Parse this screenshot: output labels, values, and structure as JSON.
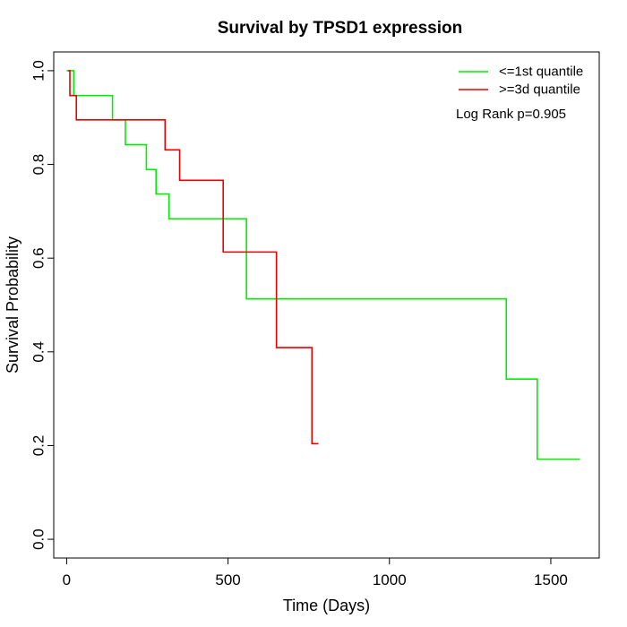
{
  "chart_data": {
    "type": "line",
    "title": "Survival by TPSD1 expression",
    "xlabel": "Time (Days)",
    "ylabel": "Survival Probability",
    "xlim": [
      -40,
      1650
    ],
    "ylim": [
      -0.04,
      1.04
    ],
    "xticks": [
      0,
      500,
      1000,
      1500
    ],
    "yticks": [
      0.0,
      0.2,
      0.4,
      0.6,
      0.8,
      1.0
    ],
    "ytick_labels": [
      "0.0",
      "0.2",
      "0.4",
      "0.6",
      "0.8",
      "1.0"
    ],
    "grid": false,
    "legend_position": "top-right",
    "annotation": "Log Rank p=0.905",
    "series": [
      {
        "name": "<=1st quantile",
        "color": "#00ee00",
        "step": true,
        "x": [
          0,
          22,
          142,
          182,
          247,
          277,
          317,
          557,
          1362,
          1458,
          1590
        ],
        "y": [
          1.0,
          0.947,
          0.895,
          0.842,
          0.789,
          0.737,
          0.684,
          0.513,
          0.342,
          0.171,
          0.171
        ]
      },
      {
        "name": ">=3d quantile",
        "color": "#ee0000",
        "step": true,
        "x": [
          5,
          10,
          30,
          305,
          350,
          485,
          650,
          760,
          780
        ],
        "y": [
          1.0,
          0.947,
          0.895,
          0.831,
          0.766,
          0.613,
          0.409,
          0.204,
          0.204
        ]
      }
    ]
  }
}
